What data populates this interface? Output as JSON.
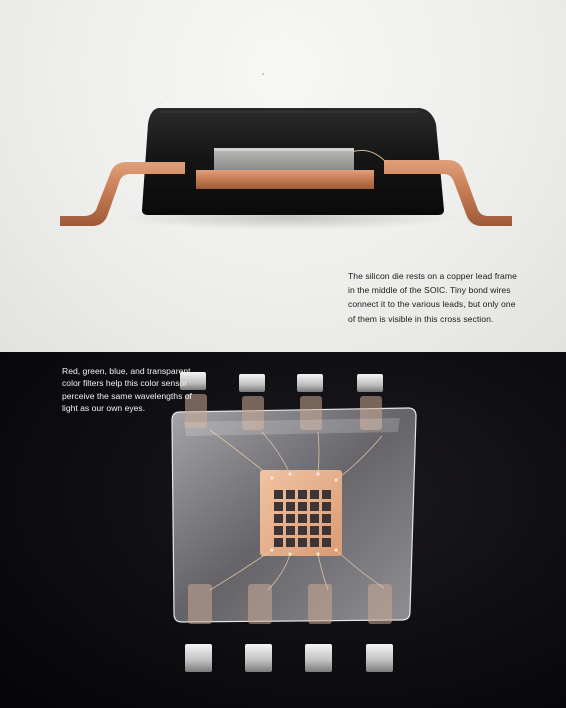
{
  "captions": {
    "cross_section": "The silicon die rests on a copper lead frame in the middle of the SOIC. Tiny bond wires connect it to the various leads, but only one of them is visible in this cross section.",
    "color_sensor": "Red, green, blue, and transparent color filters help this color sensor perceive the same wavelengths of light as our own eyes."
  },
  "colors": {
    "top_background": "#eeeeec",
    "bottom_background": "#0d0c10",
    "copper": "#c8805a",
    "package_black": "#151515",
    "die_silver": "#9a9a98",
    "filter_dark": "#3c3436"
  }
}
